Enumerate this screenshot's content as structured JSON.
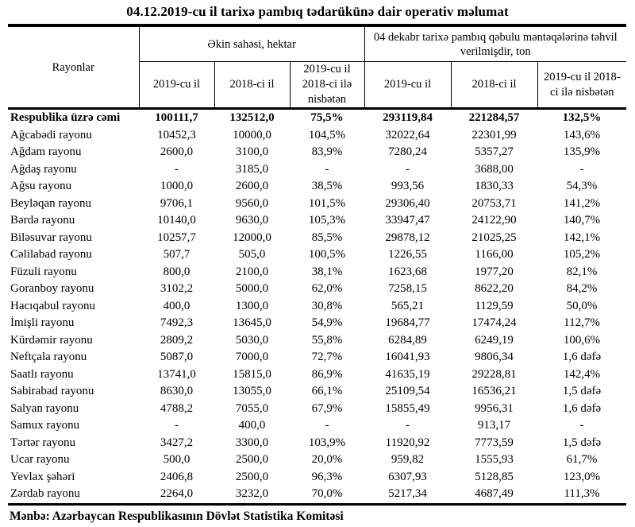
{
  "title": "04.12.2019-cu il tarixə pambıq tədarükünə dair operativ məlumat",
  "table": {
    "row_header": "Rayonlar",
    "group_headers": {
      "area": "Əkin sahəsi, hektar",
      "tons": "04 dekabr tarixə pambıq qəbulu məntəqələrinə təhvil verilmişdir, ton"
    },
    "sub_headers": [
      "2019-cu il",
      "2018-ci il",
      "2019-cu il 2018-ci ilə nisbətən",
      "2019-cu il",
      "2018-ci il",
      "2019-cu il 2018-ci ilə nisbətən"
    ],
    "rows": [
      {
        "name": "Respublika üzrə cəmi",
        "bold": true,
        "values": [
          "100111,7",
          "132512,0",
          "75,5%",
          "293119,84",
          "221284,57",
          "132,5%"
        ]
      },
      {
        "name": "Ağcabədi rayonu",
        "bold": false,
        "values": [
          "10452,3",
          "10000,0",
          "104,5%",
          "32022,64",
          "22301,99",
          "143,6%"
        ]
      },
      {
        "name": "Ağdam rayonu",
        "bold": false,
        "values": [
          "2600,0",
          "3100,0",
          "83,9%",
          "7280,24",
          "5357,27",
          "135,9%"
        ]
      },
      {
        "name": "Ağdaş rayonu",
        "bold": false,
        "values": [
          "-",
          "3185,0",
          "-",
          "-",
          "3688,00",
          "-"
        ]
      },
      {
        "name": "Ağsu rayonu",
        "bold": false,
        "values": [
          "1000,0",
          "2600,0",
          "38,5%",
          "993,56",
          "1830,33",
          "54,3%"
        ]
      },
      {
        "name": "Beyləqan rayonu",
        "bold": false,
        "values": [
          "9706,1",
          "9560,0",
          "101,5%",
          "29306,40",
          "20753,71",
          "141,2%"
        ]
      },
      {
        "name": "Bərdə rayonu",
        "bold": false,
        "values": [
          "10140,0",
          "9630,0",
          "105,3%",
          "33947,47",
          "24122,90",
          "140,7%"
        ]
      },
      {
        "name": "Biləsuvar rayonu",
        "bold": false,
        "values": [
          "10257,7",
          "12000,0",
          "85,5%",
          "29878,12",
          "21025,25",
          "142,1%"
        ]
      },
      {
        "name": "Cəlilabad rayonu",
        "bold": false,
        "values": [
          "507,7",
          "505,0",
          "100,5%",
          "1226,55",
          "1166,00",
          "105,2%"
        ]
      },
      {
        "name": "Füzuli rayonu",
        "bold": false,
        "values": [
          "800,0",
          "2100,0",
          "38,1%",
          "1623,68",
          "1977,20",
          "82,1%"
        ]
      },
      {
        "name": "Goranboy rayonu",
        "bold": false,
        "values": [
          "3102,2",
          "5000,0",
          "62,0%",
          "7258,15",
          "8622,20",
          "84,2%"
        ]
      },
      {
        "name": "Hacıqabul rayonu",
        "bold": false,
        "values": [
          "400,0",
          "1300,0",
          "30,8%",
          "565,21",
          "1129,59",
          "50,0%"
        ]
      },
      {
        "name": "İmişli rayonu",
        "bold": false,
        "values": [
          "7492,3",
          "13645,0",
          "54,9%",
          "19684,77",
          "17474,24",
          "112,7%"
        ]
      },
      {
        "name": "Kürdəmir rayonu",
        "bold": false,
        "values": [
          "2809,2",
          "5030,0",
          "55,8%",
          "6284,89",
          "6249,19",
          "100,6%"
        ]
      },
      {
        "name": "Neftçala rayonu",
        "bold": false,
        "values": [
          "5087,0",
          "7000,0",
          "72,7%",
          "16041,93",
          "9806,34",
          "1,6 dəfə"
        ]
      },
      {
        "name": "Saatlı rayonu",
        "bold": false,
        "values": [
          "13741,0",
          "15815,0",
          "86,9%",
          "41635,19",
          "29228,81",
          "142,4%"
        ]
      },
      {
        "name": "Sabirabad rayonu",
        "bold": false,
        "values": [
          "8630,0",
          "13055,0",
          "66,1%",
          "25109,54",
          "16536,21",
          "1,5 dəfə"
        ]
      },
      {
        "name": "Salyan rayonu",
        "bold": false,
        "values": [
          "4788,2",
          "7055,0",
          "67,9%",
          "15855,49",
          "9956,31",
          "1,6 dəfə"
        ]
      },
      {
        "name": "Samux rayonu",
        "bold": false,
        "values": [
          "-",
          "400,0",
          "-",
          "-",
          "913,17",
          "-"
        ]
      },
      {
        "name": "Tərtər rayonu",
        "bold": false,
        "values": [
          "3427,2",
          "3300,0",
          "103,9%",
          "11920,92",
          "7773,59",
          "1,5 dəfə"
        ]
      },
      {
        "name": "Ucar rayonu",
        "bold": false,
        "values": [
          "500,0",
          "2500,0",
          "20,0%",
          "959,82",
          "1555,93",
          "61,7%"
        ]
      },
      {
        "name": "Yevlax şəhəri",
        "bold": false,
        "values": [
          "2406,8",
          "2500,0",
          "96,3%",
          "6307,93",
          "5128,85",
          "123,0%"
        ]
      },
      {
        "name": "Zərdab rayonu",
        "bold": false,
        "values": [
          "2264,0",
          "3232,0",
          "70,0%",
          "5217,34",
          "4687,49",
          "111,3%"
        ]
      }
    ]
  },
  "footer": {
    "source": "Mənbə: Azərbaycan Respublikasının Dövlət Statistika Komitəsi"
  },
  "colors": {
    "text": "#000000",
    "background": "#ffffff",
    "border": "#000000"
  }
}
